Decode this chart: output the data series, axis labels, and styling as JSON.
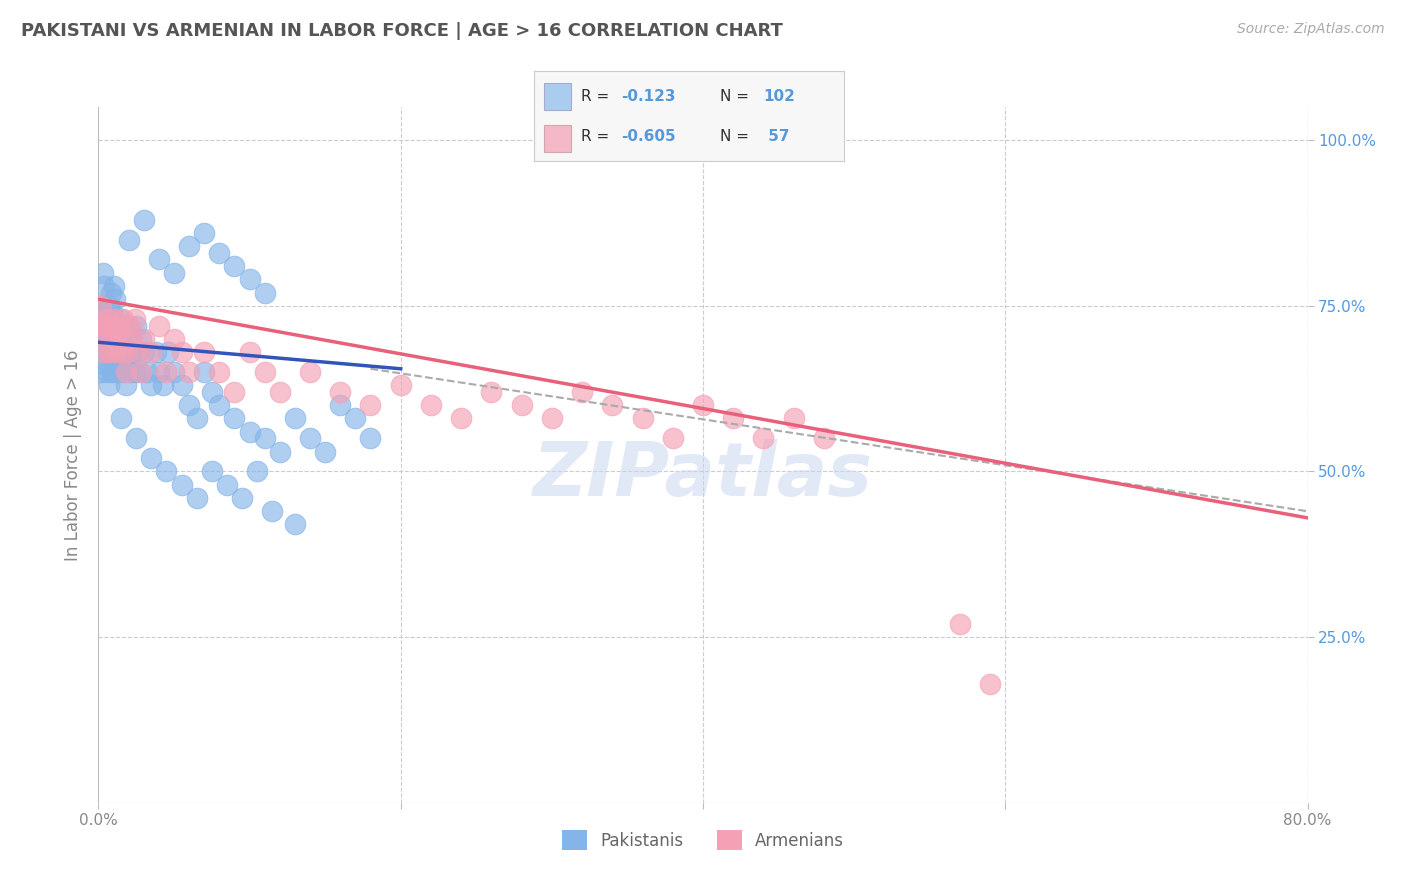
{
  "title": "PAKISTANI VS ARMENIAN IN LABOR FORCE | AGE > 16 CORRELATION CHART",
  "source": "Source: ZipAtlas.com",
  "ylabel": "In Labor Force | Age > 16",
  "x_min": 0.0,
  "x_max": 0.8,
  "y_min": 0.0,
  "y_max": 1.05,
  "pakistani_color": "#85b4e8",
  "armenian_color": "#f4a0b5",
  "pakistani_line_color": "#3355bb",
  "armenian_line_color": "#e8607a",
  "dashed_line_color": "#aaaaaa",
  "watermark": "ZIPatlas",
  "pakistani_R": -0.123,
  "pakistani_N": 102,
  "armenian_R": -0.605,
  "armenian_N": 57,
  "background_color": "#ffffff",
  "grid_color": "#cccccc",
  "title_color": "#555555",
  "right_tick_color": "#5599dd",
  "legend_pak_color": "#aaccee",
  "legend_arm_color": "#f4b8c8",
  "pak_x": [
    0.001,
    0.002,
    0.002,
    0.003,
    0.003,
    0.003,
    0.004,
    0.004,
    0.004,
    0.005,
    0.005,
    0.005,
    0.006,
    0.006,
    0.006,
    0.007,
    0.007,
    0.007,
    0.008,
    0.008,
    0.008,
    0.009,
    0.009,
    0.009,
    0.01,
    0.01,
    0.01,
    0.011,
    0.011,
    0.011,
    0.012,
    0.012,
    0.013,
    0.013,
    0.014,
    0.014,
    0.015,
    0.015,
    0.016,
    0.016,
    0.017,
    0.017,
    0.018,
    0.018,
    0.019,
    0.019,
    0.02,
    0.02,
    0.021,
    0.022,
    0.023,
    0.024,
    0.025,
    0.026,
    0.027,
    0.028,
    0.03,
    0.032,
    0.035,
    0.038,
    0.04,
    0.043,
    0.046,
    0.05,
    0.055,
    0.06,
    0.065,
    0.07,
    0.075,
    0.08,
    0.09,
    0.1,
    0.11,
    0.12,
    0.13,
    0.14,
    0.15,
    0.16,
    0.17,
    0.18,
    0.02,
    0.03,
    0.04,
    0.05,
    0.06,
    0.07,
    0.08,
    0.09,
    0.1,
    0.11,
    0.015,
    0.025,
    0.035,
    0.045,
    0.055,
    0.065,
    0.075,
    0.085,
    0.095,
    0.105,
    0.115,
    0.13
  ],
  "pak_y": [
    0.68,
    0.72,
    0.65,
    0.7,
    0.75,
    0.8,
    0.68,
    0.73,
    0.78,
    0.7,
    0.66,
    0.74,
    0.68,
    0.72,
    0.65,
    0.7,
    0.75,
    0.63,
    0.68,
    0.72,
    0.77,
    0.65,
    0.7,
    0.74,
    0.68,
    0.73,
    0.78,
    0.66,
    0.71,
    0.76,
    0.68,
    0.72,
    0.7,
    0.65,
    0.68,
    0.73,
    0.7,
    0.66,
    0.72,
    0.68,
    0.65,
    0.7,
    0.68,
    0.63,
    0.7,
    0.66,
    0.68,
    0.72,
    0.65,
    0.7,
    0.68,
    0.65,
    0.72,
    0.68,
    0.65,
    0.7,
    0.68,
    0.65,
    0.63,
    0.68,
    0.65,
    0.63,
    0.68,
    0.65,
    0.63,
    0.6,
    0.58,
    0.65,
    0.62,
    0.6,
    0.58,
    0.56,
    0.55,
    0.53,
    0.58,
    0.55,
    0.53,
    0.6,
    0.58,
    0.55,
    0.85,
    0.88,
    0.82,
    0.8,
    0.84,
    0.86,
    0.83,
    0.81,
    0.79,
    0.77,
    0.58,
    0.55,
    0.52,
    0.5,
    0.48,
    0.46,
    0.5,
    0.48,
    0.46,
    0.5,
    0.44,
    0.42
  ],
  "arm_x": [
    0.001,
    0.002,
    0.003,
    0.004,
    0.005,
    0.006,
    0.007,
    0.008,
    0.009,
    0.01,
    0.011,
    0.012,
    0.013,
    0.014,
    0.015,
    0.016,
    0.017,
    0.018,
    0.019,
    0.02,
    0.022,
    0.024,
    0.026,
    0.028,
    0.03,
    0.035,
    0.04,
    0.045,
    0.05,
    0.055,
    0.06,
    0.07,
    0.08,
    0.09,
    0.1,
    0.11,
    0.12,
    0.14,
    0.16,
    0.18,
    0.2,
    0.22,
    0.24,
    0.26,
    0.28,
    0.3,
    0.32,
    0.34,
    0.36,
    0.38,
    0.4,
    0.42,
    0.44,
    0.46,
    0.48,
    0.57,
    0.59
  ],
  "arm_y": [
    0.72,
    0.75,
    0.68,
    0.72,
    0.7,
    0.73,
    0.68,
    0.72,
    0.7,
    0.73,
    0.68,
    0.71,
    0.69,
    0.72,
    0.68,
    0.73,
    0.7,
    0.65,
    0.68,
    0.72,
    0.7,
    0.73,
    0.68,
    0.65,
    0.7,
    0.68,
    0.72,
    0.65,
    0.7,
    0.68,
    0.65,
    0.68,
    0.65,
    0.62,
    0.68,
    0.65,
    0.62,
    0.65,
    0.62,
    0.6,
    0.63,
    0.6,
    0.58,
    0.62,
    0.6,
    0.58,
    0.62,
    0.6,
    0.58,
    0.55,
    0.6,
    0.58,
    0.55,
    0.58,
    0.55,
    0.27,
    0.18
  ],
  "pak_line_x0": 0.0,
  "pak_line_x1": 0.2,
  "pak_line_y0": 0.695,
  "pak_line_y1": 0.655,
  "arm_line_x0": 0.0,
  "arm_line_x1": 0.8,
  "arm_line_y0": 0.76,
  "arm_line_y1": 0.43,
  "dash_line_x0": 0.18,
  "dash_line_x1": 0.8,
  "dash_line_y0": 0.655,
  "dash_line_y1": 0.44
}
